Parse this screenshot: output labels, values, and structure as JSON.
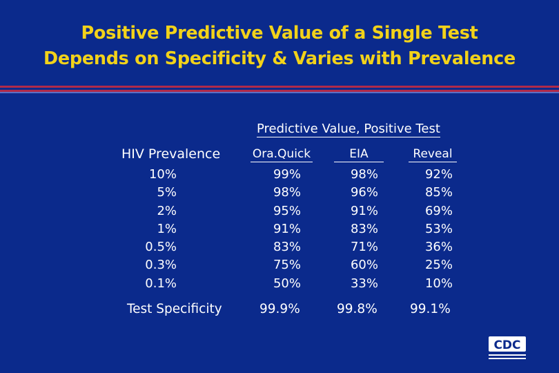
{
  "slide": {
    "title_line1": "Positive Predictive Value of a Single Test",
    "title_line2": "Depends on Specificity & Varies with Prevalence"
  },
  "table": {
    "group_header": "Predictive Value, Positive Test",
    "prevalence_header": "HIV Prevalence",
    "prevalence": [
      "10%",
      "5%",
      "2%",
      "1%",
      "0.5%",
      "0.3%",
      "0.1%"
    ],
    "columns": [
      {
        "name": "Ora.Quick",
        "values": [
          "99%",
          "98%",
          "95%",
          "91%",
          "83%",
          "75%",
          "50%"
        ],
        "specificity": "99.9%"
      },
      {
        "name": "EIA",
        "values": [
          "98%",
          "96%",
          "91%",
          "83%",
          "71%",
          "60%",
          "33%"
        ],
        "specificity": "99.8%"
      },
      {
        "name": "Reveal",
        "values": [
          "92%",
          "85%",
          "69%",
          "53%",
          "36%",
          "25%",
          "10%"
        ],
        "specificity": "99.1%"
      }
    ],
    "specificity_label": "Test Specificity"
  },
  "logo": {
    "text": "CDC"
  },
  "colors": {
    "background": "#0b2a8c",
    "title": "#f2d21a",
    "rule": "#b02a4a",
    "text": "#ffffff"
  }
}
